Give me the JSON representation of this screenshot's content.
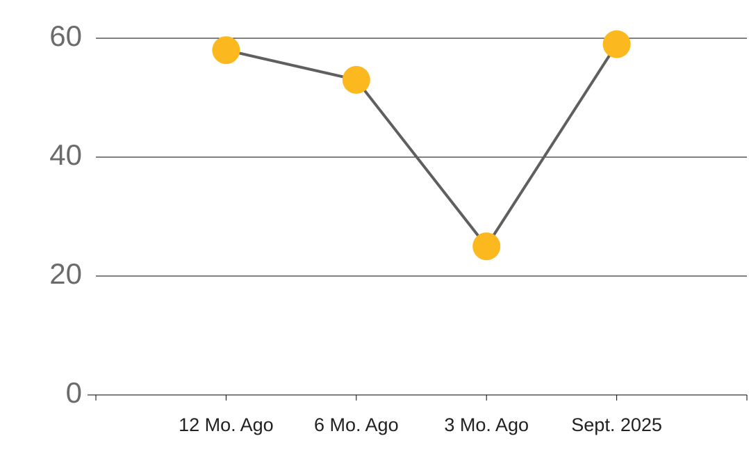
{
  "chart_data": {
    "type": "line",
    "categories": [
      "12 Mo. Ago",
      "6 Mo. Ago",
      "3 Mo. Ago",
      "Sept. 2025"
    ],
    "series": [
      {
        "values": [
          58,
          53,
          25,
          59
        ],
        "color": "#5f5f5f",
        "marker_color": "#fbb91f"
      }
    ],
    "ylim": [
      0,
      60
    ],
    "yticks": [
      0,
      20,
      40,
      60
    ],
    "grid": true
  }
}
